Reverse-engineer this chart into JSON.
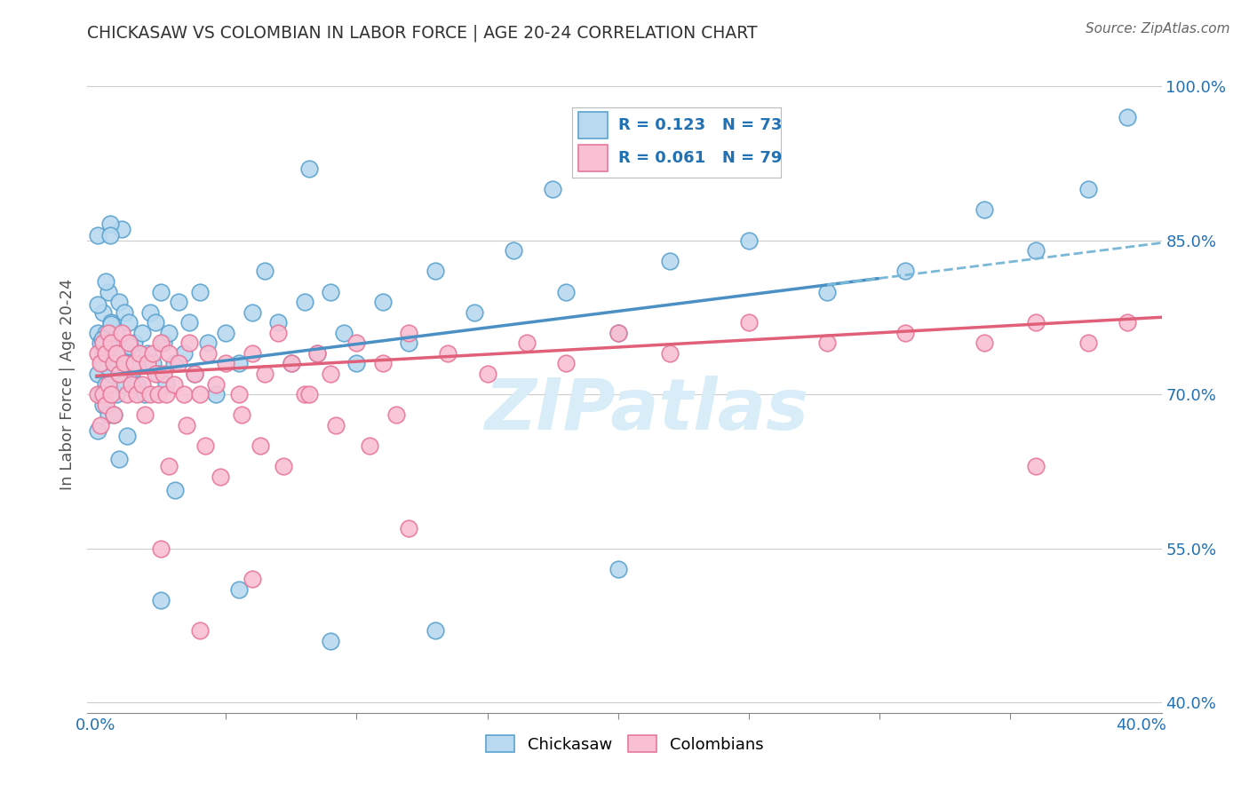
{
  "title": "CHICKASAW VS COLOMBIAN IN LABOR FORCE | AGE 20-24 CORRELATION CHART",
  "source": "Source: ZipAtlas.com",
  "ylabel_label": "In Labor Force | Age 20-24",
  "legend_r1": "R = 0.123",
  "legend_n1": "N = 73",
  "legend_r2": "R = 0.061",
  "legend_n2": "N = 79",
  "color_blue_face": "#b8d9f0",
  "color_blue_edge": "#5ba3d0",
  "color_pink_face": "#f9c0d4",
  "color_pink_edge": "#e8789a",
  "color_blue_line": "#4a90c4",
  "color_pink_line": "#e0607a",
  "color_blue_dashed": "#7ab8d8",
  "color_blue_text": "#2171b5",
  "watermark_color": "#d8edf8",
  "ytick_vals": [
    0.4,
    0.55,
    0.7,
    0.85,
    1.0
  ],
  "ytick_labels": [
    "40.0%",
    "55.0%",
    "70.0%",
    "85.0%",
    "100.0%"
  ],
  "xlim": [
    0.0,
    0.4
  ],
  "ylim": [
    0.39,
    1.03
  ],
  "blue_intercept": 0.717,
  "blue_slope": 0.32,
  "pink_intercept": 0.718,
  "pink_slope": 0.14,
  "chickasaw_x": [
    0.001,
    0.001,
    0.002,
    0.002,
    0.003,
    0.003,
    0.003,
    0.004,
    0.004,
    0.005,
    0.005,
    0.005,
    0.006,
    0.006,
    0.007,
    0.007,
    0.008,
    0.008,
    0.009,
    0.01,
    0.01,
    0.011,
    0.012,
    0.013,
    0.014,
    0.015,
    0.016,
    0.017,
    0.018,
    0.019,
    0.02,
    0.021,
    0.022,
    0.023,
    0.024,
    0.025,
    0.026,
    0.027,
    0.028,
    0.03,
    0.032,
    0.034,
    0.036,
    0.038,
    0.04,
    0.043,
    0.046,
    0.05,
    0.055,
    0.06,
    0.065,
    0.07,
    0.075,
    0.08,
    0.085,
    0.09,
    0.095,
    0.1,
    0.11,
    0.12,
    0.13,
    0.145,
    0.16,
    0.18,
    0.2,
    0.22,
    0.25,
    0.28,
    0.31,
    0.34,
    0.36,
    0.38,
    0.395
  ],
  "chickasaw_y": [
    0.76,
    0.72,
    0.75,
    0.7,
    0.78,
    0.74,
    0.69,
    0.76,
    0.71,
    0.8,
    0.75,
    0.68,
    0.77,
    0.72,
    0.74,
    0.68,
    0.76,
    0.7,
    0.79,
    0.74,
    0.71,
    0.78,
    0.73,
    0.77,
    0.72,
    0.75,
    0.71,
    0.73,
    0.76,
    0.7,
    0.74,
    0.78,
    0.73,
    0.77,
    0.72,
    0.8,
    0.75,
    0.71,
    0.76,
    0.73,
    0.79,
    0.74,
    0.77,
    0.72,
    0.8,
    0.75,
    0.7,
    0.76,
    0.73,
    0.78,
    0.82,
    0.77,
    0.73,
    0.79,
    0.74,
    0.8,
    0.76,
    0.73,
    0.79,
    0.75,
    0.82,
    0.78,
    0.84,
    0.8,
    0.76,
    0.83,
    0.85,
    0.8,
    0.82,
    0.88,
    0.84,
    0.9,
    0.97
  ],
  "colombian_x": [
    0.001,
    0.001,
    0.002,
    0.002,
    0.003,
    0.003,
    0.004,
    0.004,
    0.005,
    0.005,
    0.006,
    0.006,
    0.007,
    0.007,
    0.008,
    0.009,
    0.01,
    0.011,
    0.012,
    0.013,
    0.014,
    0.015,
    0.016,
    0.017,
    0.018,
    0.019,
    0.02,
    0.021,
    0.022,
    0.023,
    0.024,
    0.025,
    0.026,
    0.027,
    0.028,
    0.03,
    0.032,
    0.034,
    0.036,
    0.038,
    0.04,
    0.043,
    0.046,
    0.05,
    0.055,
    0.06,
    0.065,
    0.07,
    0.075,
    0.08,
    0.085,
    0.09,
    0.1,
    0.11,
    0.12,
    0.135,
    0.15,
    0.165,
    0.18,
    0.2,
    0.22,
    0.25,
    0.28,
    0.31,
    0.34,
    0.36,
    0.38,
    0.395,
    0.028,
    0.035,
    0.042,
    0.048,
    0.056,
    0.063,
    0.072,
    0.082,
    0.092,
    0.105,
    0.115
  ],
  "colombian_y": [
    0.74,
    0.7,
    0.73,
    0.67,
    0.75,
    0.7,
    0.74,
    0.69,
    0.76,
    0.71,
    0.75,
    0.7,
    0.73,
    0.68,
    0.74,
    0.72,
    0.76,
    0.73,
    0.7,
    0.75,
    0.71,
    0.73,
    0.7,
    0.74,
    0.71,
    0.68,
    0.73,
    0.7,
    0.74,
    0.72,
    0.7,
    0.75,
    0.72,
    0.7,
    0.74,
    0.71,
    0.73,
    0.7,
    0.75,
    0.72,
    0.7,
    0.74,
    0.71,
    0.73,
    0.7,
    0.74,
    0.72,
    0.76,
    0.73,
    0.7,
    0.74,
    0.72,
    0.75,
    0.73,
    0.76,
    0.74,
    0.72,
    0.75,
    0.73,
    0.76,
    0.74,
    0.77,
    0.75,
    0.76,
    0.75,
    0.77,
    0.75,
    0.77,
    0.63,
    0.67,
    0.65,
    0.62,
    0.68,
    0.65,
    0.63,
    0.7,
    0.67,
    0.65,
    0.68
  ]
}
